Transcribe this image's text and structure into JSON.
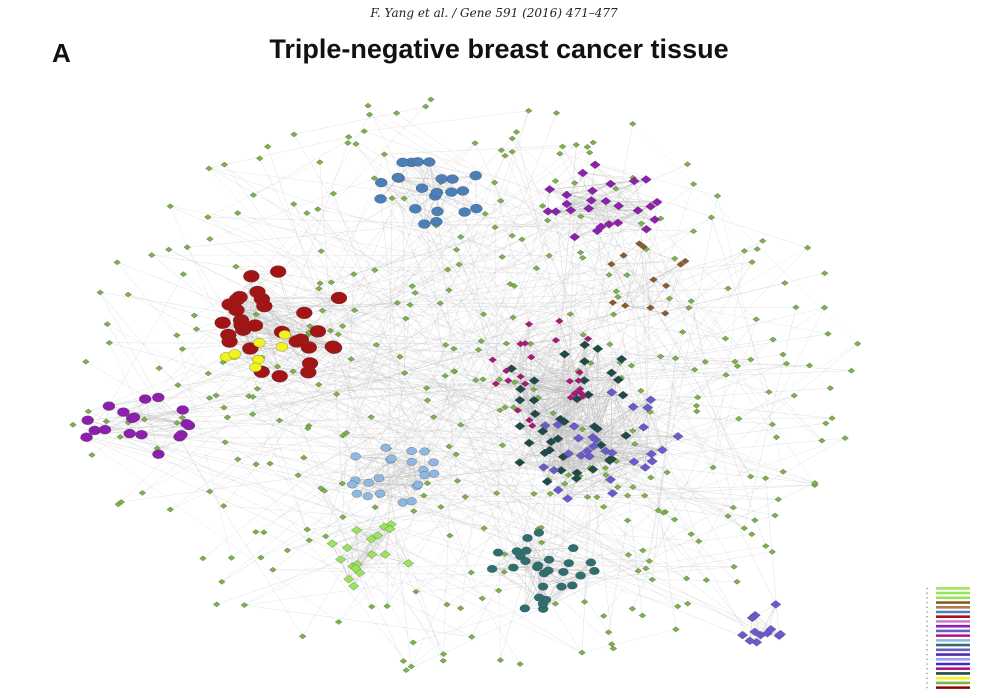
{
  "header": {
    "citation": "F. Yang et al. / Gene 591 (2016) 471–477"
  },
  "figure": {
    "panel_label": "A",
    "title": "Triple-negative breast cancer tissue"
  },
  "network": {
    "node_color_default": "#7cb342",
    "edge_color": "#bdbdbd",
    "modules": [
      {
        "name": "module-red",
        "color": "#a31515",
        "labels": []
      },
      {
        "name": "module-yellow",
        "color": "#f2f21f",
        "labels": []
      },
      {
        "name": "module-steelblue",
        "color": "#4a7fb8",
        "labels": []
      },
      {
        "name": "module-purple",
        "color": "#8e1fae",
        "labels": []
      },
      {
        "name": "module-lightblue",
        "color": "#8fb8e0",
        "labels": []
      },
      {
        "name": "module-teal",
        "color": "#2f6f70",
        "labels": []
      },
      {
        "name": "module-darkteal",
        "color": "#1f4a4a",
        "labels": []
      },
      {
        "name": "module-magenta",
        "color": "#b0157a",
        "labels": []
      },
      {
        "name": "module-slate",
        "color": "#6a5acd",
        "labels": []
      },
      {
        "name": "module-brown",
        "color": "#8b5a2b",
        "labels": []
      },
      {
        "name": "module-lightgreen",
        "color": "#9be35a",
        "labels": []
      }
    ]
  },
  "legend": {
    "colors": [
      "#9be35a",
      "#9be35a",
      "#9be35a",
      "#8b5a2b",
      "#b07a4a",
      "#4a7fb8",
      "#a31515",
      "#d17ad1",
      "#8e1fae",
      "#6a5acd",
      "#b0157a",
      "#8fb8e0",
      "#2f6f70",
      "#6a5acd",
      "#4b2ea8",
      "#9fa0ff",
      "#3f2ebf",
      "#b0157a",
      "#1f4a4a",
      "#f2f21f",
      "#7cb342",
      "#8b0000"
    ]
  }
}
